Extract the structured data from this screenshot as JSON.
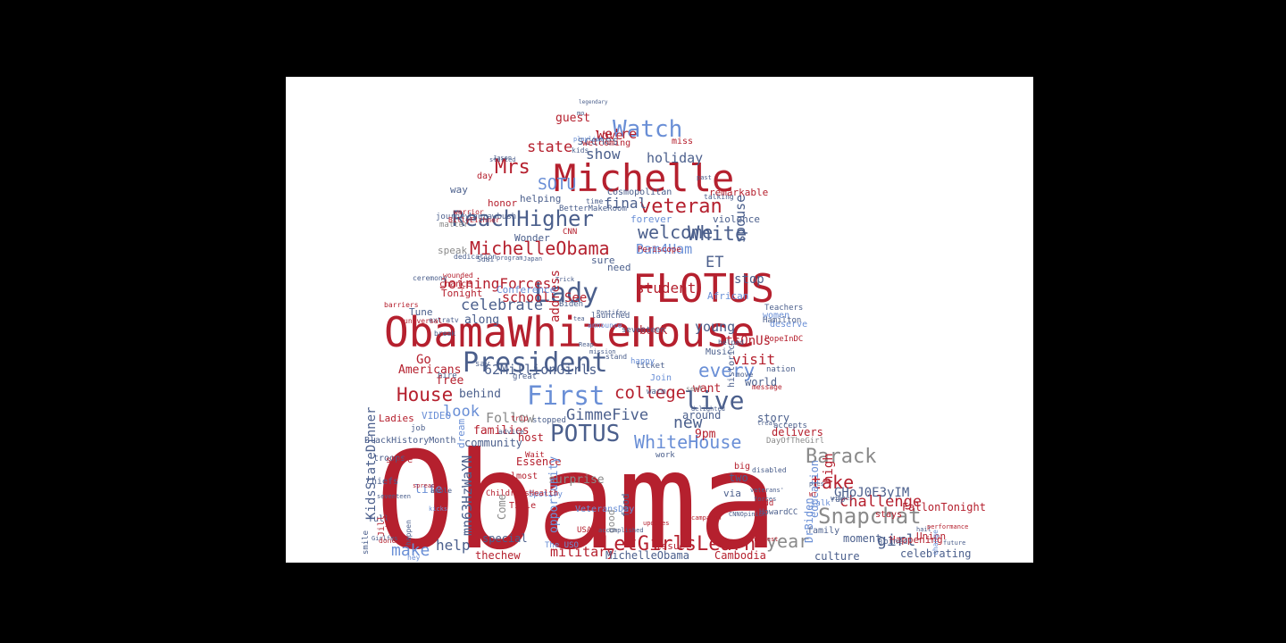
{
  "colors": {
    "background": "#000000",
    "canvas": "#ffffff",
    "red": "#b5202e",
    "navy": "#4b5f8c",
    "blue": "#6a8fd6",
    "gray": "#8a8a8a"
  },
  "words": [
    {
      "text": "Obama",
      "color": "red"
    },
    {
      "text": "ObamaWhiteHouse",
      "color": "red"
    },
    {
      "text": "FLOTUS",
      "color": "red"
    },
    {
      "text": "Michelle",
      "color": "red"
    },
    {
      "text": "President",
      "color": "navy"
    },
    {
      "text": "Lady",
      "color": "navy"
    },
    {
      "text": "First",
      "color": "blue"
    },
    {
      "text": "POTUS",
      "color": "navy"
    },
    {
      "text": "Snapchat",
      "color": "gray"
    },
    {
      "text": "Watch",
      "color": "blue"
    },
    {
      "text": "ReachHigher",
      "color": "navy"
    },
    {
      "text": "MichelleObama",
      "color": "red"
    },
    {
      "text": "LetGirlsLearn",
      "color": "red"
    },
    {
      "text": "veteran",
      "color": "red"
    },
    {
      "text": "live",
      "color": "navy"
    },
    {
      "text": "Barack",
      "color": "gray"
    },
    {
      "text": "White",
      "color": "navy"
    },
    {
      "text": "WhiteHouse",
      "color": "blue"
    },
    {
      "text": "House",
      "color": "red"
    },
    {
      "text": "year",
      "color": "gray"
    },
    {
      "text": "welcome",
      "color": "navy"
    },
    {
      "text": "Mrs",
      "color": "red"
    },
    {
      "text": "SOTU",
      "color": "blue"
    },
    {
      "text": "celebrate",
      "color": "navy"
    },
    {
      "text": "every",
      "color": "blue"
    },
    {
      "text": "college",
      "color": "red"
    },
    {
      "text": "take",
      "color": "red"
    },
    {
      "text": "challenge",
      "color": "red"
    },
    {
      "text": "JoiningForces",
      "color": "red"
    },
    {
      "text": "GimmeFive",
      "color": "navy"
    },
    {
      "text": "look",
      "color": "blue"
    },
    {
      "text": "student",
      "color": "red"
    },
    {
      "text": "Bam4Ham",
      "color": "blue"
    },
    {
      "text": "ET",
      "color": "navy"
    },
    {
      "text": "state",
      "color": "red"
    },
    {
      "text": "show",
      "color": "navy"
    },
    {
      "text": "final",
      "color": "navy"
    },
    {
      "text": "girl",
      "color": "navy"
    },
    {
      "text": "new",
      "color": "navy"
    },
    {
      "text": "make",
      "color": "blue"
    },
    {
      "text": "help",
      "color": "navy"
    },
    {
      "text": "military",
      "color": "red"
    },
    {
      "text": "Follow",
      "color": "gray"
    },
    {
      "text": "mn63HzWaYN",
      "color": "navy"
    },
    {
      "text": "KidsStateDinner",
      "color": "navy"
    },
    {
      "text": "GHoJ0E3yIM",
      "color": "navy"
    },
    {
      "text": "school",
      "color": "red"
    },
    {
      "text": "visit",
      "color": "red"
    },
    {
      "text": "ItsOnUs",
      "color": "red"
    },
    {
      "text": "young",
      "color": "navy"
    },
    {
      "text": "spouse",
      "color": "navy"
    },
    {
      "text": "stop",
      "color": "navy"
    },
    {
      "text": "holiday",
      "color": "navy"
    },
    {
      "text": "we're",
      "color": "red"
    },
    {
      "text": "love",
      "color": "red"
    },
    {
      "text": "guest",
      "color": "red"
    },
    {
      "text": "scenes",
      "color": "navy"
    },
    {
      "text": "62MillionGirls",
      "color": "navy"
    },
    {
      "text": "Go",
      "color": "red"
    },
    {
      "text": "along",
      "color": "navy"
    },
    {
      "text": "address",
      "color": "red"
    },
    {
      "text": "See",
      "color": "red"
    },
    {
      "text": "back",
      "color": "red"
    },
    {
      "text": "want",
      "color": "red"
    },
    {
      "text": "around",
      "color": "navy"
    },
    {
      "text": "9pm",
      "color": "red"
    },
    {
      "text": "delivers",
      "color": "red"
    },
    {
      "text": "FallonTonight",
      "color": "red"
    },
    {
      "text": "Happening",
      "color": "red"
    },
    {
      "text": "culture",
      "color": "navy"
    },
    {
      "text": "celebrating",
      "color": "navy"
    },
    {
      "text": "moment",
      "color": "navy"
    },
    {
      "text": "DrBiden",
      "color": "blue"
    },
    {
      "text": "Union",
      "color": "red"
    },
    {
      "text": "education",
      "color": "blue"
    },
    {
      "text": "high",
      "color": "red"
    },
    {
      "text": "two",
      "color": "navy"
    },
    {
      "text": "via",
      "color": "navy"
    },
    {
      "text": "story",
      "color": "navy"
    },
    {
      "text": "world",
      "color": "navy"
    },
    {
      "text": "Americans",
      "color": "red"
    },
    {
      "text": "free",
      "color": "red"
    },
    {
      "text": "behind",
      "color": "navy"
    },
    {
      "text": "families",
      "color": "red"
    },
    {
      "text": "community",
      "color": "navy"
    },
    {
      "text": "host",
      "color": "red"
    },
    {
      "text": "Essence",
      "color": "red"
    },
    {
      "text": "surprise",
      "color": "gray"
    },
    {
      "text": "opportunity",
      "color": "blue"
    },
    {
      "text": "Come",
      "color": "gray"
    },
    {
      "text": "special",
      "color": "navy"
    },
    {
      "text": "thechew",
      "color": "red"
    },
    {
      "text": "Cambodia",
      "color": "red"
    },
    {
      "text": "MichelleObama",
      "color": "navy"
    },
    {
      "text": "life",
      "color": "blue"
    },
    {
      "text": "dream",
      "color": "blue"
    },
    {
      "text": "VIDEO",
      "color": "blue"
    },
    {
      "text": "Ladies",
      "color": "red"
    },
    {
      "text": "Tonight",
      "color": "red"
    },
    {
      "text": "speak",
      "color": "gray"
    },
    {
      "text": "chance",
      "color": "red"
    },
    {
      "text": "Tune",
      "color": "navy"
    },
    {
      "text": "Conference",
      "color": "blue"
    },
    {
      "text": "violence",
      "color": "navy"
    },
    {
      "text": "forever",
      "color": "blue"
    },
    {
      "text": "remarkable",
      "color": "red"
    },
    {
      "text": "honor",
      "color": "red"
    },
    {
      "text": "helping",
      "color": "navy"
    },
    {
      "text": "way",
      "color": "navy"
    },
    {
      "text": "day",
      "color": "red"
    },
    {
      "text": "welcoming",
      "color": "red"
    },
    {
      "text": "miss",
      "color": "red"
    },
    {
      "text": "Cosmopolitan",
      "color": "navy"
    },
    {
      "text": "journey",
      "color": "navy"
    },
    {
      "text": "laurawbush",
      "color": "navy"
    },
    {
      "text": "matter",
      "color": "gray"
    },
    {
      "text": "BetterMakeRoom",
      "color": "navy"
    },
    {
      "text": "CNN",
      "color": "red"
    },
    {
      "text": "Wonder",
      "color": "navy"
    },
    {
      "text": "need",
      "color": "navy"
    },
    {
      "text": "sure",
      "color": "navy"
    },
    {
      "text": "African",
      "color": "blue"
    },
    {
      "text": "Periscope",
      "color": "red"
    },
    {
      "text": "Music",
      "color": "navy"
    },
    {
      "text": "Join",
      "color": "blue"
    },
    {
      "text": "historic",
      "color": "navy"
    },
    {
      "text": "women",
      "color": "blue"
    },
    {
      "text": "deserve",
      "color": "blue"
    },
    {
      "text": "seventeen",
      "color": "navy"
    },
    {
      "text": "launched",
      "color": "navy"
    },
    {
      "text": "Biden",
      "color": "navy"
    },
    {
      "text": "DayOfTheGirl",
      "color": "gray"
    },
    {
      "text": "accepts",
      "color": "navy"
    },
    {
      "text": "stopped",
      "color": "navy"
    },
    {
      "text": "BlackHistoryMonth",
      "color": "navy"
    },
    {
      "text": "chiefs",
      "color": "navy"
    },
    {
      "text": "troops",
      "color": "navy"
    },
    {
      "text": "share",
      "color": "red"
    },
    {
      "text": "full",
      "color": "navy"
    },
    {
      "text": "Jill",
      "color": "red"
    },
    {
      "text": "smile",
      "color": "navy"
    },
    {
      "text": "done",
      "color": "red"
    },
    {
      "text": "VeteransDay",
      "color": "blue"
    },
    {
      "text": "USAID",
      "color": "red"
    },
    {
      "text": "The USO",
      "color": "blue"
    },
    {
      "text": "issue",
      "color": "red"
    },
    {
      "text": "family",
      "color": "navy"
    },
    {
      "text": "HowardCC",
      "color": "navy"
    },
    {
      "text": "Add",
      "color": "red"
    },
    {
      "text": "big",
      "color": "red"
    },
    {
      "text": "stays",
      "color": "red"
    },
    {
      "text": "joined",
      "color": "navy"
    },
    {
      "text": "food",
      "color": "navy"
    },
    {
      "text": "good",
      "color": "gray"
    },
    {
      "text": "Title",
      "color": "red"
    },
    {
      "text": "Spotify",
      "color": "blue"
    },
    {
      "text": "almost",
      "color": "red"
    },
    {
      "text": "ChildrensHealth",
      "color": "red"
    },
    {
      "text": "Wait",
      "color": "red"
    },
    {
      "text": "rap",
      "color": "navy"
    },
    {
      "text": "talk",
      "color": "blue"
    },
    {
      "text": "nation",
      "color": "navy"
    },
    {
      "text": "PopeInDC",
      "color": "red"
    },
    {
      "text": "Hamilton",
      "color": "navy"
    },
    {
      "text": "Teachers",
      "color": "navy"
    },
    {
      "text": "hire",
      "color": "navy"
    },
    {
      "text": "great",
      "color": "navy"
    },
    {
      "text": "say",
      "color": "navy"
    },
    {
      "text": "job",
      "color": "navy"
    },
    {
      "text": "advice",
      "color": "navy"
    },
    {
      "text": "trip",
      "color": "red"
    },
    {
      "text": "work",
      "color": "navy"
    },
    {
      "text": "ticket",
      "color": "navy"
    },
    {
      "text": "warm",
      "color": "navy"
    },
    {
      "text": "sent",
      "color": "gray"
    },
    {
      "text": "move",
      "color": "navy"
    },
    {
      "text": "message",
      "color": "red"
    },
    {
      "text": "helped",
      "color": "navy"
    },
    {
      "text": "happy",
      "color": "blue"
    },
    {
      "text": "stand",
      "color": "navy"
    },
    {
      "text": "announce",
      "color": "blue"
    },
    {
      "text": "dedication",
      "color": "navy"
    },
    {
      "text": "Sdai",
      "color": "navy"
    },
    {
      "text": "wounded",
      "color": "red"
    },
    {
      "text": "ceremony",
      "color": "navy"
    },
    {
      "text": "extratv",
      "color": "navy"
    },
    {
      "text": "break",
      "color": "navy"
    },
    {
      "text": "barriers",
      "color": "red"
    },
    {
      "text": "universal",
      "color": "red"
    },
    {
      "text": "program",
      "color": "navy"
    },
    {
      "text": "Japan",
      "color": "navy"
    },
    {
      "text": "tea",
      "color": "navy"
    },
    {
      "text": "Reap",
      "color": "navy"
    },
    {
      "text": "mission",
      "color": "navy"
    },
    {
      "text": "Pontifex",
      "color": "navy"
    },
    {
      "text": "Trick",
      "color": "navy"
    },
    {
      "text": "started",
      "color": "navy"
    },
    {
      "text": "Jason",
      "color": "navy"
    },
    {
      "text": "kids",
      "color": "navy"
    },
    {
      "text": "playlist",
      "color": "blue"
    },
    {
      "text": "BillyEichner",
      "color": "red"
    },
    {
      "text": "warrior",
      "color": "red"
    },
    {
      "text": "time",
      "color": "navy"
    },
    {
      "text": "talking",
      "color": "navy"
    },
    {
      "text": "past",
      "color": "navy"
    },
    {
      "text": "WT",
      "color": "red"
    },
    {
      "text": "pres",
      "color": "navy"
    },
    {
      "text": "wishes",
      "color": "navy"
    },
    {
      "text": "delighted",
      "color": "navy"
    },
    {
      "text": "treat",
      "color": "navy"
    },
    {
      "text": "disabled",
      "color": "navy"
    },
    {
      "text": "veterans'",
      "color": "navy"
    },
    {
      "text": "CNNOpinion",
      "color": "navy"
    },
    {
      "text": "campaign",
      "color": "red"
    },
    {
      "text": "updates",
      "color": "red"
    },
    {
      "text": "accomplished",
      "color": "navy"
    },
    {
      "text": "amole",
      "color": "navy"
    },
    {
      "text": "happen",
      "color": "navy"
    },
    {
      "text": "hey",
      "color": "blue"
    },
    {
      "text": "wrote",
      "color": "red"
    },
    {
      "text": "spread",
      "color": "red"
    },
    {
      "text": "forces",
      "color": "navy"
    },
    {
      "text": "harvest",
      "color": "red"
    },
    {
      "text": "hail",
      "color": "navy"
    },
    {
      "text": "future",
      "color": "navy"
    },
    {
      "text": "performance",
      "color": "red"
    },
    {
      "text": "change",
      "color": "blue"
    },
    {
      "text": "kicks",
      "color": "blue"
    },
    {
      "text": "Girlfes",
      "color": "navy"
    },
    {
      "text": "seventeen",
      "color": "navy"
    },
    {
      "text": "mo",
      "color": "navy"
    },
    {
      "text": "legendary",
      "color": "navy"
    },
    {
      "text": "welcomed",
      "color": "red"
    },
    {
      "text": "cemetery",
      "color": "navy"
    },
    {
      "text": "light",
      "color": "red"
    },
    {
      "text": "tinge",
      "color": "red"
    }
  ]
}
